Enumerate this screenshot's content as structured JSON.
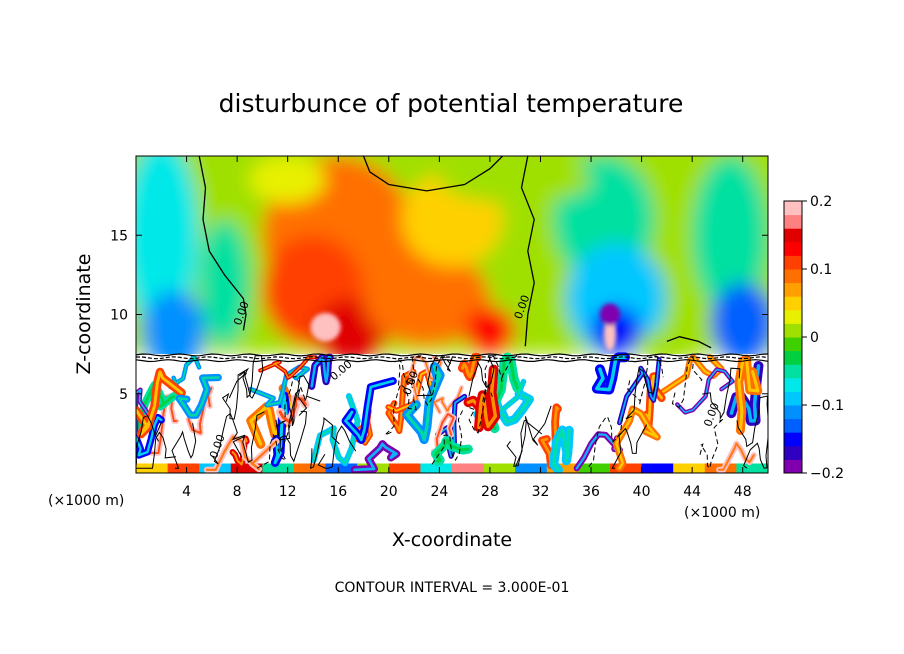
{
  "chart_data": {
    "type": "heatmap",
    "title": "disturbunce of potential temperature",
    "xlabel": "X-coordinate",
    "ylabel": "Z-coordinate",
    "x_unit_left": "(×1000 m)",
    "x_unit_right": "(×1000 m)",
    "xlim": [
      0,
      50
    ],
    "ylim": [
      0,
      20
    ],
    "x_ticks": [
      4,
      8,
      12,
      16,
      20,
      24,
      28,
      32,
      36,
      40,
      44,
      48
    ],
    "y_ticks": [
      5,
      10,
      15
    ],
    "colorbar": {
      "range": [
        -0.2,
        0.2
      ],
      "tick_labels": [
        "0.2",
        "0.1",
        "0",
        "−0.1",
        "−0.2"
      ],
      "tick_values": [
        0.2,
        0.1,
        0,
        -0.1,
        -0.2
      ],
      "colors": [
        "#8000b0",
        "#3000c0",
        "#0000ff",
        "#0060ff",
        "#0090ff",
        "#00c8ff",
        "#00e8e8",
        "#00e0a0",
        "#00d040",
        "#40d000",
        "#a0e000",
        "#e8f000",
        "#ffd000",
        "#ffa000",
        "#ff7000",
        "#ff4000",
        "#ff0000",
        "#e00000",
        "#ff8080",
        "#ffc0c0"
      ]
    },
    "contour_labels": [
      "0.00",
      "0.00",
      "0.00",
      "0.00",
      "0.00",
      "0.00"
    ],
    "footer": "CONTOUR INTERVAL = 3.000E-01"
  }
}
